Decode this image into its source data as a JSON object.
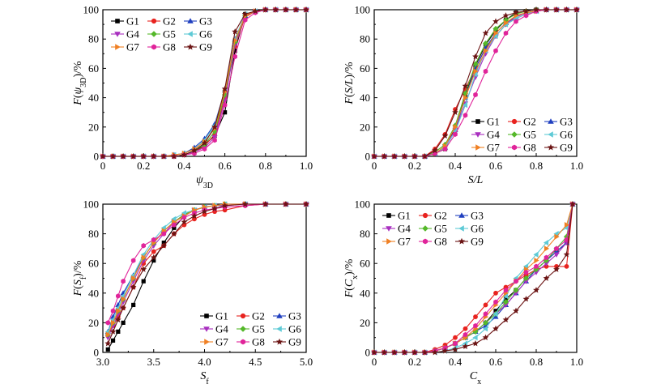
{
  "series_names": [
    "G1",
    "G2",
    "G3",
    "G4",
    "G5",
    "G6",
    "G7",
    "G8",
    "G9"
  ],
  "series_colors": [
    "#000000",
    "#e8231f",
    "#1f3fbf",
    "#a82fbf",
    "#55b82a",
    "#5ecad6",
    "#f08024",
    "#e0249a",
    "#6b1414"
  ],
  "series_markers": [
    "square",
    "circle",
    "triangle-up",
    "triangle-down",
    "diamond",
    "triangle-left",
    "triangle-right",
    "hexagon",
    "star"
  ],
  "chart_data": [
    {
      "type": "line",
      "xlabel_main": "ψ",
      "xlabel_sub": "3D",
      "ylabel": "F(ψ3D)/%",
      "ylabel_parts": [
        "F(",
        "ψ",
        "3D",
        ")/%"
      ],
      "xlim": [
        0,
        1.0
      ],
      "ylim": [
        0,
        100
      ],
      "xticks": [
        "0",
        "0.2",
        "0.4",
        "0.6",
        "0.8",
        "1.0"
      ],
      "yticks": [
        "0",
        "20",
        "40",
        "60",
        "80",
        "100"
      ],
      "legend_position": "top-left",
      "x": [
        0,
        0.05,
        0.1,
        0.15,
        0.2,
        0.25,
        0.3,
        0.35,
        0.4,
        0.45,
        0.5,
        0.55,
        0.6,
        0.65,
        0.7,
        0.75,
        0.8,
        0.85,
        0.9,
        0.95,
        1.0
      ],
      "series": [
        {
          "name": "G1",
          "values": [
            0,
            0,
            0,
            0,
            0,
            0,
            0,
            0,
            1,
            3,
            8,
            14,
            30,
            72,
            97,
            99,
            100,
            100,
            100,
            100,
            100
          ]
        },
        {
          "name": "G2",
          "values": [
            0,
            0,
            0,
            0,
            0,
            0,
            0,
            0,
            1,
            3,
            7,
            15,
            40,
            75,
            95,
            99,
            100,
            100,
            100,
            100,
            100
          ]
        },
        {
          "name": "G3",
          "values": [
            0,
            0,
            0,
            0,
            0,
            0,
            0,
            1,
            2,
            6,
            12,
            22,
            45,
            80,
            96,
            99,
            100,
            100,
            100,
            100,
            100
          ]
        },
        {
          "name": "G4",
          "values": [
            0,
            0,
            0,
            0,
            0,
            0,
            0,
            0,
            1,
            3,
            6,
            13,
            38,
            76,
            96,
            99,
            100,
            100,
            100,
            100,
            100
          ]
        },
        {
          "name": "G5",
          "values": [
            0,
            0,
            0,
            0,
            0,
            0,
            0,
            0,
            1,
            4,
            8,
            17,
            42,
            78,
            96,
            99,
            100,
            100,
            100,
            100,
            100
          ]
        },
        {
          "name": "G6",
          "values": [
            0,
            0,
            0,
            0,
            0,
            0,
            0,
            1,
            2,
            5,
            11,
            21,
            45,
            80,
            97,
            99,
            100,
            100,
            100,
            100,
            100
          ]
        },
        {
          "name": "G7",
          "values": [
            0,
            0,
            0,
            0,
            0,
            0,
            0,
            1,
            2,
            5,
            10,
            19,
            44,
            79,
            96,
            99,
            100,
            100,
            100,
            100,
            100
          ]
        },
        {
          "name": "G8",
          "values": [
            0,
            0,
            0,
            0,
            0,
            0,
            0,
            0,
            1,
            2,
            5,
            11,
            35,
            68,
            93,
            98,
            100,
            100,
            100,
            100,
            100
          ]
        },
        {
          "name": "G9",
          "values": [
            0,
            0,
            0,
            0,
            0,
            0,
            0,
            0,
            1,
            4,
            9,
            20,
            46,
            85,
            97,
            99,
            100,
            100,
            100,
            100,
            100
          ]
        }
      ]
    },
    {
      "type": "line",
      "xlabel_main": "S/L",
      "xlabel_sub": "",
      "ylabel": "F(S/L)/%",
      "ylabel_parts": [
        "F(",
        "S/L",
        "",
        ")/%"
      ],
      "xlim": [
        0,
        1.0
      ],
      "ylim": [
        0,
        100
      ],
      "xticks": [
        "0",
        "0.2",
        "0.4",
        "0.6",
        "0.8",
        "1.0"
      ],
      "yticks": [
        "0",
        "20",
        "40",
        "60",
        "80",
        "100"
      ],
      "legend_position": "bottom-right",
      "x": [
        0,
        0.05,
        0.1,
        0.15,
        0.2,
        0.25,
        0.3,
        0.35,
        0.4,
        0.45,
        0.5,
        0.55,
        0.6,
        0.65,
        0.7,
        0.75,
        0.8,
        0.85,
        0.9,
        0.95,
        1.0
      ],
      "series": [
        {
          "name": "G1",
          "values": [
            0,
            0,
            0,
            0,
            0,
            0,
            2,
            5,
            20,
            42,
            62,
            76,
            86,
            93,
            98,
            99,
            100,
            100,
            100,
            100,
            100
          ]
        },
        {
          "name": "G2",
          "values": [
            0,
            0,
            0,
            0,
            0,
            0,
            5,
            15,
            32,
            46,
            60,
            74,
            82,
            90,
            94,
            97,
            99,
            100,
            100,
            100,
            100
          ]
        },
        {
          "name": "G3",
          "values": [
            0,
            0,
            0,
            0,
            0,
            0,
            2,
            6,
            18,
            40,
            60,
            74,
            84,
            91,
            95,
            98,
            99,
            100,
            100,
            100,
            100
          ]
        },
        {
          "name": "G4",
          "values": [
            0,
            0,
            0,
            0,
            0,
            0,
            2,
            6,
            18,
            36,
            54,
            70,
            82,
            90,
            95,
            98,
            99,
            100,
            100,
            100,
            100
          ]
        },
        {
          "name": "G5",
          "values": [
            0,
            0,
            0,
            0,
            0,
            0,
            3,
            8,
            21,
            43,
            63,
            77,
            87,
            93,
            97,
            99,
            100,
            100,
            100,
            100,
            100
          ]
        },
        {
          "name": "G6",
          "values": [
            0,
            0,
            0,
            0,
            0,
            0,
            2,
            6,
            17,
            35,
            56,
            72,
            82,
            90,
            94,
            97,
            99,
            100,
            100,
            100,
            100
          ]
        },
        {
          "name": "G7",
          "values": [
            0,
            0,
            0,
            0,
            0,
            0,
            2,
            7,
            20,
            40,
            58,
            72,
            84,
            91,
            96,
            98,
            99,
            100,
            100,
            100,
            100
          ]
        },
        {
          "name": "G8",
          "values": [
            0,
            0,
            0,
            0,
            0,
            0,
            2,
            5,
            15,
            28,
            42,
            58,
            72,
            84,
            92,
            96,
            99,
            100,
            100,
            100,
            100
          ]
        },
        {
          "name": "G9",
          "values": [
            0,
            0,
            0,
            0,
            0,
            0,
            4,
            14,
            30,
            48,
            68,
            84,
            92,
            96,
            98,
            99,
            100,
            100,
            100,
            100,
            100
          ]
        }
      ]
    },
    {
      "type": "line",
      "xlabel_main": "S",
      "xlabel_sub": "f",
      "ylabel": "F(Sf)/%",
      "ylabel_parts": [
        "F(",
        "S",
        "f",
        ")/%"
      ],
      "xlim": [
        3.0,
        5.0
      ],
      "ylim": [
        0,
        100
      ],
      "xticks": [
        "3.0",
        "3.5",
        "4.0",
        "4.5",
        "5.0"
      ],
      "yticks": [
        "0",
        "20",
        "40",
        "60",
        "80",
        "100"
      ],
      "legend_position": "bottom-right",
      "x": [
        3.05,
        3.1,
        3.15,
        3.2,
        3.3,
        3.4,
        3.5,
        3.6,
        3.7,
        3.8,
        3.9,
        4.0,
        4.1,
        4.2,
        4.4,
        4.6,
        4.8,
        5.0
      ],
      "series": [
        {
          "name": "G1",
          "values": [
            2,
            8,
            14,
            20,
            32,
            48,
            62,
            74,
            84,
            92,
            96,
            98,
            99,
            100,
            100,
            100,
            100,
            100
          ]
        },
        {
          "name": "G2",
          "values": [
            12,
            18,
            24,
            30,
            44,
            60,
            68,
            72,
            80,
            86,
            90,
            93,
            95,
            96,
            99,
            100,
            100,
            100
          ]
        },
        {
          "name": "G3",
          "values": [
            14,
            24,
            32,
            40,
            52,
            64,
            74,
            82,
            88,
            93,
            96,
            98,
            99,
            100,
            100,
            100,
            100,
            100
          ]
        },
        {
          "name": "G4",
          "values": [
            10,
            18,
            26,
            34,
            48,
            62,
            72,
            80,
            88,
            92,
            96,
            98,
            99,
            99,
            100,
            100,
            100,
            100
          ]
        },
        {
          "name": "G5",
          "values": [
            12,
            20,
            28,
            36,
            50,
            64,
            74,
            82,
            88,
            93,
            96,
            98,
            99,
            100,
            100,
            100,
            100,
            100
          ]
        },
        {
          "name": "G6",
          "values": [
            14,
            22,
            30,
            38,
            52,
            66,
            76,
            84,
            90,
            94,
            96,
            98,
            99,
            100,
            100,
            100,
            100,
            100
          ]
        },
        {
          "name": "G7",
          "values": [
            12,
            20,
            28,
            36,
            50,
            64,
            74,
            82,
            88,
            92,
            96,
            98,
            99,
            100,
            100,
            100,
            100,
            100
          ]
        },
        {
          "name": "G8",
          "values": [
            20,
            28,
            38,
            48,
            62,
            72,
            76,
            80,
            86,
            91,
            94,
            96,
            97,
            98,
            99,
            100,
            100,
            100
          ]
        },
        {
          "name": "G9",
          "values": [
            6,
            14,
            22,
            30,
            44,
            56,
            64,
            72,
            80,
            88,
            92,
            95,
            97,
            99,
            100,
            100,
            100,
            100
          ]
        }
      ]
    },
    {
      "type": "line",
      "xlabel_main": "C",
      "xlabel_sub": "x",
      "ylabel": "F(Cx)/%",
      "ylabel_parts": [
        "F(",
        "C",
        "x",
        ")/%"
      ],
      "xlim": [
        0,
        1.0
      ],
      "ylim": [
        0,
        100
      ],
      "xticks": [
        "0",
        "0.2",
        "0.4",
        "0.6",
        "0.8",
        "1.0"
      ],
      "yticks": [
        "0",
        "20",
        "40",
        "60",
        "80",
        "100"
      ],
      "legend_position": "top-left",
      "x": [
        0,
        0.05,
        0.1,
        0.15,
        0.2,
        0.25,
        0.3,
        0.35,
        0.4,
        0.45,
        0.5,
        0.55,
        0.6,
        0.65,
        0.7,
        0.75,
        0.8,
        0.85,
        0.9,
        0.95,
        0.98
      ],
      "series": [
        {
          "name": "G1",
          "values": [
            0,
            0,
            0,
            0,
            0,
            0,
            1,
            3,
            6,
            10,
            14,
            20,
            28,
            36,
            42,
            50,
            56,
            62,
            68,
            74,
            100
          ]
        },
        {
          "name": "G2",
          "values": [
            0,
            0,
            0,
            0,
            0,
            0,
            2,
            5,
            10,
            16,
            24,
            32,
            40,
            44,
            48,
            52,
            56,
            58,
            58,
            58,
            100
          ]
        },
        {
          "name": "G3",
          "values": [
            0,
            0,
            0,
            0,
            0,
            0,
            1,
            3,
            6,
            10,
            14,
            18,
            24,
            32,
            40,
            48,
            56,
            62,
            68,
            74,
            100
          ]
        },
        {
          "name": "G4",
          "values": [
            0,
            0,
            0,
            0,
            0,
            0,
            1,
            3,
            6,
            10,
            14,
            20,
            26,
            32,
            40,
            48,
            54,
            60,
            66,
            74,
            100
          ]
        },
        {
          "name": "G5",
          "values": [
            0,
            0,
            0,
            0,
            0,
            0,
            1,
            3,
            6,
            10,
            14,
            20,
            26,
            34,
            42,
            50,
            56,
            62,
            70,
            78,
            100
          ]
        },
        {
          "name": "G6",
          "values": [
            0,
            0,
            0,
            0,
            0,
            0,
            0,
            1,
            3,
            6,
            10,
            16,
            26,
            38,
            50,
            58,
            66,
            74,
            80,
            84,
            100
          ]
        },
        {
          "name": "G7",
          "values": [
            0,
            0,
            0,
            0,
            0,
            0,
            1,
            3,
            6,
            10,
            16,
            24,
            32,
            40,
            48,
            56,
            62,
            70,
            78,
            86,
            100
          ]
        },
        {
          "name": "G8",
          "values": [
            0,
            0,
            0,
            0,
            0,
            0,
            1,
            3,
            6,
            12,
            18,
            26,
            34,
            42,
            48,
            54,
            58,
            64,
            70,
            76,
            100
          ]
        },
        {
          "name": "G9",
          "values": [
            0,
            0,
            0,
            0,
            0,
            0,
            0,
            1,
            2,
            4,
            6,
            10,
            16,
            22,
            28,
            36,
            42,
            50,
            56,
            66,
            100
          ]
        }
      ]
    }
  ]
}
